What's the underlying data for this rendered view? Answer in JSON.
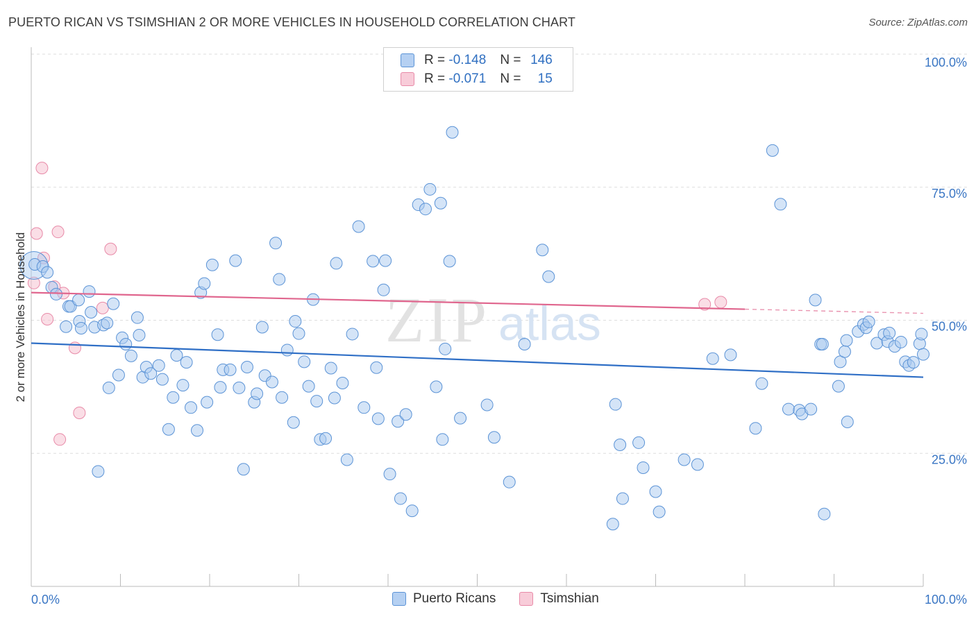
{
  "header": {
    "title": "PUERTO RICAN VS TSIMSHIAN 2 OR MORE VEHICLES IN HOUSEHOLD CORRELATION CHART",
    "source": "Source: ZipAtlas.com"
  },
  "legend": {
    "rows": [
      {
        "r_label": "R =",
        "r_value": "-0.148",
        "n_label": "N =",
        "n_value": "146"
      },
      {
        "r_label": "R =",
        "r_value": "-0.071",
        "n_label": "N =",
        "n_value": "15"
      }
    ]
  },
  "bottom_legend": {
    "series_a": "Puerto Ricans",
    "series_b": "Tsimshian"
  },
  "watermark": {
    "zip": "ZIP",
    "atlas": "atlas"
  },
  "colors": {
    "blue_fill": "#a9c9f0",
    "blue_stroke": "#5b93d6",
    "blue_line": "#2f6fc6",
    "pink_fill": "#f5c2d1",
    "pink_stroke": "#e88aa8",
    "pink_line": "#e0668e",
    "tick_text": "#3a76c4",
    "grid": "#dddddd"
  },
  "chart_data": {
    "type": "scatter",
    "title": "PUERTO RICAN VS TSIMSHIAN 2 OR MORE VEHICLES IN HOUSEHOLD CORRELATION CHART",
    "xlabel": "",
    "ylabel": "2 or more Vehicles in Household",
    "xlim": [
      0,
      100
    ],
    "ylim": [
      0,
      100
    ],
    "x_tick_labels": [
      "0.0%",
      "100.0%"
    ],
    "y_tick_labels": [
      {
        "value": 100,
        "label": "100.0%"
      },
      {
        "value": 75,
        "label": "75.0%"
      },
      {
        "value": 50,
        "label": "50.0%"
      },
      {
        "value": 25,
        "label": "25.0%"
      }
    ],
    "series": [
      {
        "name": "Puerto Ricans",
        "R": -0.148,
        "N": 146,
        "trend": {
          "x0": 0,
          "y0": 45.7,
          "x1": 100,
          "y1": 39.3
        },
        "points": [
          [
            0.4,
            60.5
          ],
          [
            1.3,
            60.1
          ],
          [
            1.8,
            59.0
          ],
          [
            2.3,
            56.2
          ],
          [
            2.8,
            54.9
          ],
          [
            3.9,
            48.8
          ],
          [
            4.2,
            52.6
          ],
          [
            4.4,
            52.6
          ],
          [
            5.4,
            49.8
          ],
          [
            5.6,
            48.5
          ],
          [
            5.3,
            53.8
          ],
          [
            6.5,
            55.4
          ],
          [
            6.7,
            51.5
          ],
          [
            7.1,
            48.7
          ],
          [
            7.5,
            21.6
          ],
          [
            8.1,
            49.1
          ],
          [
            8.5,
            49.5
          ],
          [
            8.7,
            37.3
          ],
          [
            9.2,
            53.1
          ],
          [
            9.8,
            39.7
          ],
          [
            10.2,
            46.7
          ],
          [
            10.6,
            45.5
          ],
          [
            11.2,
            43.3
          ],
          [
            11.9,
            50.5
          ],
          [
            12.1,
            47.2
          ],
          [
            12.5,
            39.3
          ],
          [
            12.9,
            41.2
          ],
          [
            13.4,
            40.0
          ],
          [
            14.3,
            41.5
          ],
          [
            14.7,
            38.9
          ],
          [
            15.4,
            29.5
          ],
          [
            15.9,
            35.5
          ],
          [
            16.3,
            43.4
          ],
          [
            17.0,
            37.8
          ],
          [
            17.4,
            42.1
          ],
          [
            17.9,
            33.6
          ],
          [
            18.6,
            29.3
          ],
          [
            19.0,
            55.2
          ],
          [
            19.4,
            56.9
          ],
          [
            19.7,
            34.6
          ],
          [
            20.3,
            60.4
          ],
          [
            20.9,
            47.3
          ],
          [
            21.2,
            37.4
          ],
          [
            21.5,
            40.7
          ],
          [
            22.3,
            40.7
          ],
          [
            22.9,
            61.2
          ],
          [
            23.3,
            37.3
          ],
          [
            23.8,
            22.0
          ],
          [
            24.2,
            41.2
          ],
          [
            25.0,
            34.6
          ],
          [
            25.3,
            36.2
          ],
          [
            25.9,
            48.7
          ],
          [
            26.2,
            39.6
          ],
          [
            27.0,
            38.4
          ],
          [
            27.4,
            64.5
          ],
          [
            27.8,
            57.7
          ],
          [
            28.1,
            35.5
          ],
          [
            28.7,
            44.4
          ],
          [
            29.4,
            30.8
          ],
          [
            29.6,
            49.8
          ],
          [
            30.0,
            47.5
          ],
          [
            30.6,
            42.2
          ],
          [
            31.1,
            37.6
          ],
          [
            31.6,
            53.9
          ],
          [
            32.0,
            34.8
          ],
          [
            32.4,
            27.6
          ],
          [
            33.0,
            27.8
          ],
          [
            33.6,
            41.0
          ],
          [
            34.0,
            35.4
          ],
          [
            34.2,
            60.7
          ],
          [
            34.9,
            38.2
          ],
          [
            35.4,
            23.8
          ],
          [
            36.0,
            47.4
          ],
          [
            36.7,
            67.6
          ],
          [
            37.3,
            33.6
          ],
          [
            38.3,
            61.1
          ],
          [
            38.7,
            41.1
          ],
          [
            38.9,
            31.5
          ],
          [
            39.5,
            55.7
          ],
          [
            39.7,
            61.2
          ],
          [
            40.2,
            21.1
          ],
          [
            41.1,
            31.0
          ],
          [
            41.4,
            16.5
          ],
          [
            42.0,
            32.3
          ],
          [
            42.7,
            14.2
          ],
          [
            43.4,
            71.7
          ],
          [
            44.2,
            70.9
          ],
          [
            44.7,
            74.6
          ],
          [
            45.4,
            37.5
          ],
          [
            45.9,
            72.0
          ],
          [
            46.1,
            27.6
          ],
          [
            46.4,
            44.6
          ],
          [
            46.9,
            61.1
          ],
          [
            47.2,
            85.3
          ],
          [
            48.1,
            31.6
          ],
          [
            51.1,
            34.1
          ],
          [
            51.9,
            28.0
          ],
          [
            53.6,
            19.6
          ],
          [
            55.3,
            45.5
          ],
          [
            57.3,
            63.2
          ],
          [
            58.0,
            58.2
          ],
          [
            65.2,
            11.7
          ],
          [
            65.5,
            34.2
          ],
          [
            66.0,
            26.6
          ],
          [
            66.3,
            16.5
          ],
          [
            68.1,
            27.0
          ],
          [
            68.6,
            22.3
          ],
          [
            70.0,
            17.8
          ],
          [
            70.4,
            14.0
          ],
          [
            73.2,
            23.8
          ],
          [
            74.7,
            22.9
          ],
          [
            76.4,
            42.8
          ],
          [
            78.4,
            43.5
          ],
          [
            81.2,
            29.7
          ],
          [
            81.9,
            38.1
          ],
          [
            83.1,
            81.9
          ],
          [
            84.0,
            71.8
          ],
          [
            84.9,
            33.3
          ],
          [
            86.1,
            33.1
          ],
          [
            86.4,
            32.4
          ],
          [
            87.4,
            33.3
          ],
          [
            87.9,
            53.8
          ],
          [
            88.5,
            45.5
          ],
          [
            88.9,
            13.6
          ],
          [
            88.7,
            45.5
          ],
          [
            90.5,
            37.6
          ],
          [
            90.7,
            42.2
          ],
          [
            91.2,
            44.1
          ],
          [
            91.4,
            46.2
          ],
          [
            91.5,
            30.9
          ],
          [
            92.7,
            47.9
          ],
          [
            93.3,
            49.2
          ],
          [
            93.6,
            48.6
          ],
          [
            93.9,
            49.7
          ],
          [
            94.8,
            45.7
          ],
          [
            95.6,
            47.3
          ],
          [
            96.0,
            46.0
          ],
          [
            96.2,
            47.6
          ],
          [
            96.8,
            45.1
          ],
          [
            97.5,
            45.9
          ],
          [
            98.0,
            42.2
          ],
          [
            98.4,
            41.5
          ],
          [
            98.9,
            42.1
          ],
          [
            99.6,
            45.6
          ],
          [
            99.8,
            47.4
          ],
          [
            100.0,
            43.6
          ]
        ]
      },
      {
        "name": "Tsimshian",
        "R": -0.071,
        "N": 15,
        "trend": {
          "x0": 0,
          "y0": 55.2,
          "x1": 100,
          "y1": 51.3,
          "solid_until_x": 80
        },
        "points": [
          [
            0.3,
            57.0
          ],
          [
            0.6,
            66.3
          ],
          [
            1.2,
            78.6
          ],
          [
            1.4,
            61.7
          ],
          [
            1.8,
            50.2
          ],
          [
            2.6,
            56.3
          ],
          [
            3.0,
            66.6
          ],
          [
            3.2,
            27.6
          ],
          [
            3.6,
            55.1
          ],
          [
            4.9,
            44.8
          ],
          [
            5.4,
            32.6
          ],
          [
            8.0,
            52.3
          ],
          [
            8.9,
            63.4
          ],
          [
            75.5,
            53.0
          ],
          [
            77.3,
            53.4
          ]
        ]
      }
    ]
  }
}
